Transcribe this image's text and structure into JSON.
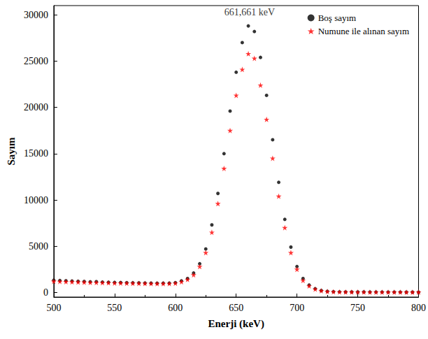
{
  "chart_data": {
    "type": "scatter",
    "x_label": "Enerji (keV)",
    "y_label": "Sayım",
    "x": [
      500,
      505,
      510,
      515,
      520,
      525,
      530,
      535,
      540,
      545,
      550,
      555,
      560,
      565,
      570,
      575,
      580,
      585,
      590,
      595,
      600,
      605,
      610,
      615,
      620,
      625,
      630,
      635,
      640,
      645,
      650,
      655,
      660,
      665,
      670,
      675,
      680,
      685,
      690,
      695,
      700,
      705,
      710,
      715,
      720,
      725,
      730,
      735,
      740,
      745,
      750,
      755,
      760,
      765,
      770,
      775,
      780,
      785,
      790,
      795,
      800
    ],
    "series": [
      {
        "name": "Boş sayım",
        "color": "#000000",
        "marker": "circle",
        "values": [
          1320,
          1290,
          1260,
          1230,
          1200,
          1180,
          1150,
          1160,
          1120,
          1100,
          1080,
          1070,
          1050,
          1040,
          1030,
          1010,
          1000,
          990,
          1000,
          1000,
          1050,
          1250,
          1500,
          2100,
          3100,
          4700,
          7300,
          10700,
          15000,
          19600,
          23800,
          27000,
          28800,
          28200,
          25400,
          21300,
          16500,
          11900,
          7900,
          4900,
          2800,
          1500,
          800,
          400,
          200,
          120,
          80,
          60,
          50,
          50,
          45,
          45,
          40,
          40,
          40,
          35,
          35,
          35,
          30,
          30,
          30
        ]
      },
      {
        "name": "Numune ile alınan sayım",
        "color": "#ff0000",
        "marker": "star",
        "values": [
          1200,
          1180,
          1160,
          1140,
          1120,
          1100,
          1080,
          1070,
          1050,
          1040,
          1020,
          1010,
          1000,
          990,
          980,
          970,
          960,
          950,
          950,
          960,
          1000,
          1150,
          1400,
          1900,
          2800,
          4300,
          6500,
          9600,
          13400,
          17500,
          21300,
          24100,
          25800,
          25300,
          22400,
          18700,
          14500,
          10400,
          7000,
          4300,
          2500,
          1300,
          700,
          350,
          180,
          100,
          70,
          50,
          45,
          45,
          40,
          40,
          35,
          35,
          35,
          30,
          30,
          30,
          25,
          25,
          25
        ]
      }
    ],
    "annotations": [
      {
        "text": "661,661 keV",
        "x": 661,
        "y": 30300
      }
    ],
    "xlim": [
      500,
      800
    ],
    "xticks": [
      500,
      550,
      600,
      650,
      700,
      750,
      800
    ],
    "ylim": [
      -500,
      31000
    ],
    "yticks": [
      0,
      5000,
      10000,
      15000,
      20000,
      25000,
      30000
    ],
    "legend": "upper right",
    "grid": false
  }
}
